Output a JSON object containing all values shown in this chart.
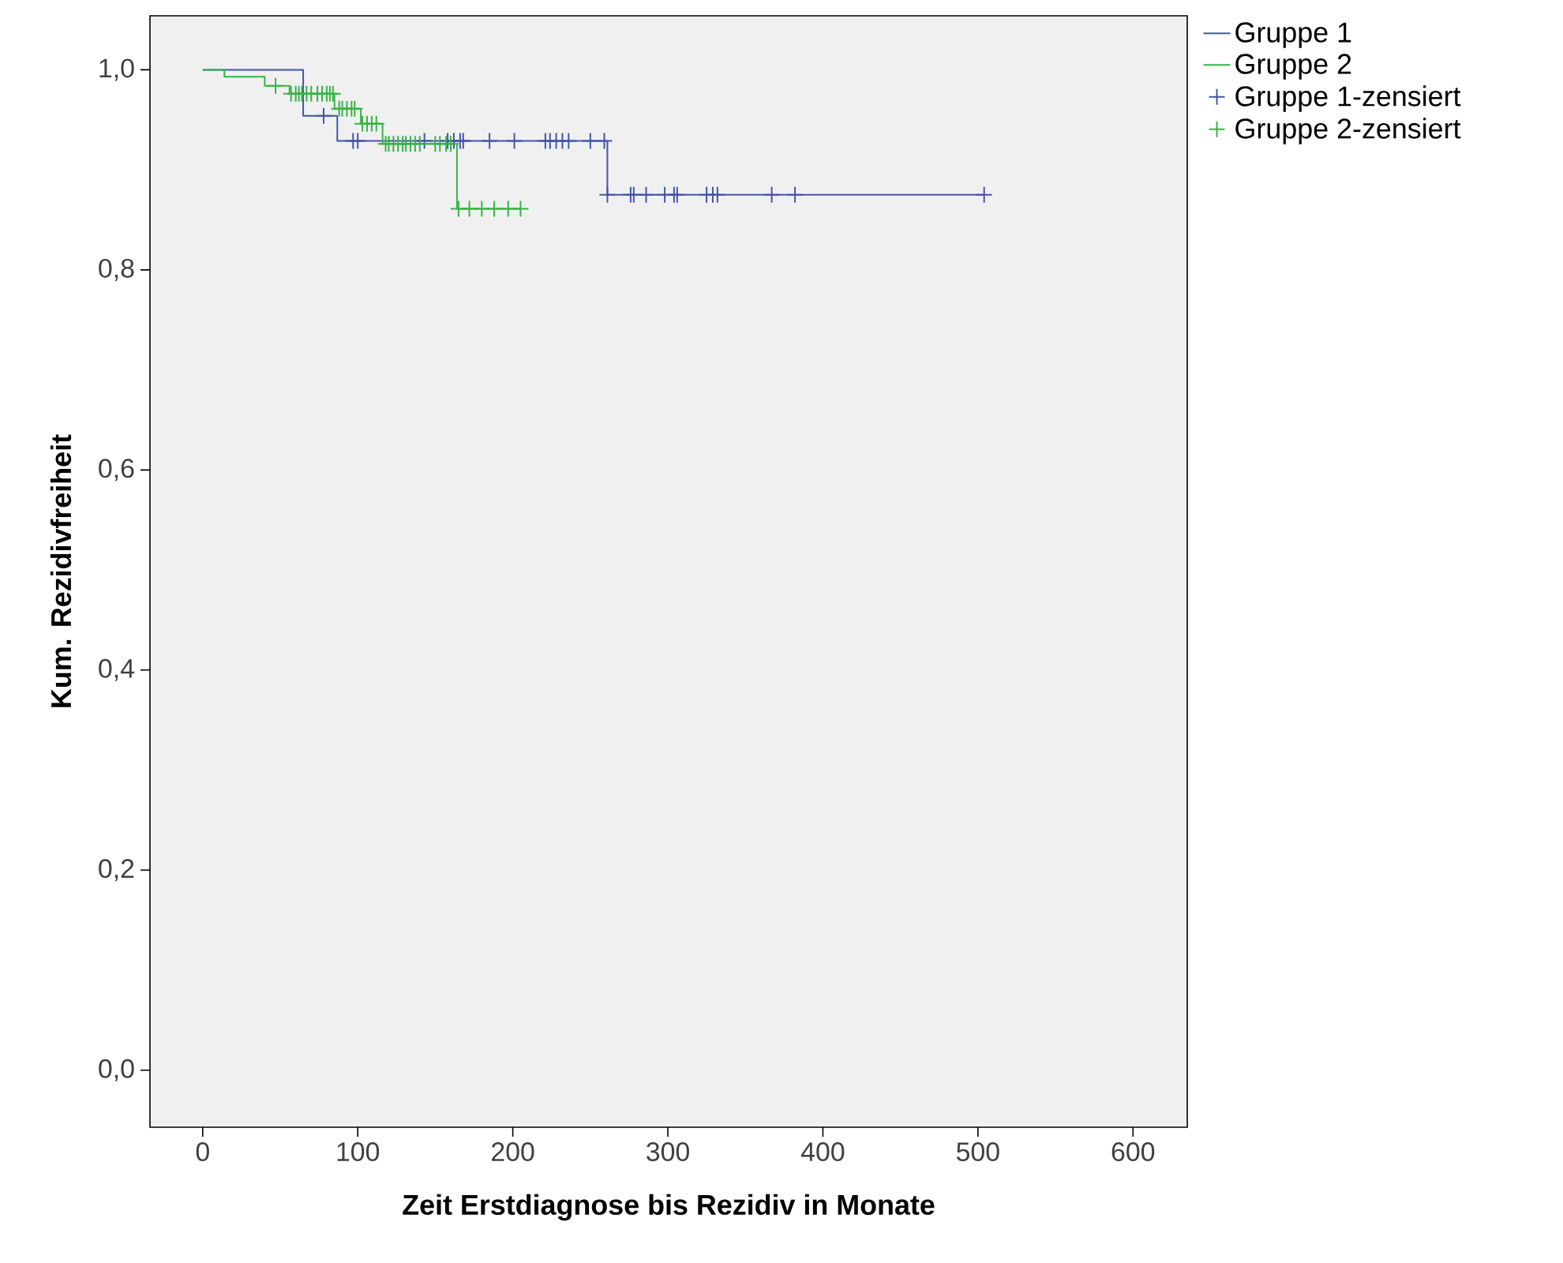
{
  "chart_data": {
    "type": "step",
    "xlabel": "Zeit Erstdiagnose bis Rezidiv in Monate",
    "ylabel": "Kum. Rezidivfreiheit",
    "xlim": [
      -34,
      635
    ],
    "ylim": [
      -0.057,
      1.054
    ],
    "xticks": [
      0,
      100,
      200,
      300,
      400,
      500,
      600
    ],
    "yticks": [
      {
        "value": 0,
        "label": "0,0"
      },
      {
        "value": 0.2,
        "label": "0,2"
      },
      {
        "value": 0.4,
        "label": "0,4"
      },
      {
        "value": 0.6,
        "label": "0,6"
      },
      {
        "value": 0.8,
        "label": "0,8"
      },
      {
        "value": 1.0,
        "label": "1,0"
      }
    ],
    "legend": "top right",
    "series": [
      {
        "name": "Gruppe 1",
        "color": "#4355a8",
        "marker": "none",
        "x": [
          0,
          64.8,
          86.8,
          261,
          504
        ],
        "values": [
          1.0,
          0.954,
          0.929,
          0.875,
          0.875
        ]
      },
      {
        "name": "Gruppe 2",
        "color": "#36b445",
        "marker": "none",
        "x": [
          0,
          14,
          40,
          56,
          85,
          102,
          116,
          164,
          205
        ],
        "values": [
          1.0,
          0.993,
          0.984,
          0.976,
          0.961,
          0.946,
          0.926,
          0.861,
          0.861
        ]
      },
      {
        "type": "scatter",
        "name": "Gruppe 1-zensiert",
        "color": "#4355a8",
        "marker": "cross",
        "x": [
          78,
          97,
          100,
          143,
          158,
          162,
          166,
          168,
          185,
          201,
          221,
          224,
          228,
          232,
          236,
          250,
          259,
          261,
          276,
          278,
          286,
          298,
          304,
          306,
          325,
          329,
          332,
          367,
          382,
          504
        ],
        "values": [
          0.954,
          0.929,
          0.929,
          0.929,
          0.929,
          0.929,
          0.929,
          0.929,
          0.929,
          0.929,
          0.929,
          0.929,
          0.929,
          0.929,
          0.929,
          0.929,
          0.929,
          0.875,
          0.875,
          0.875,
          0.875,
          0.875,
          0.875,
          0.875,
          0.875,
          0.875,
          0.875,
          0.875,
          0.875,
          0.875
        ]
      },
      {
        "type": "scatter",
        "name": "Gruppe 2-zensiert",
        "color": "#36b445",
        "marker": "cross",
        "x": [
          47,
          57,
          60,
          62,
          64,
          67,
          70,
          74,
          77,
          80,
          82,
          84,
          88,
          90,
          93,
          96,
          98,
          103,
          106,
          109,
          112,
          118,
          120,
          123,
          126,
          129,
          131,
          134,
          137,
          140,
          150,
          153,
          157,
          160,
          165,
          172,
          180,
          188,
          197,
          205
        ],
        "values": [
          0.984,
          0.976,
          0.976,
          0.976,
          0.976,
          0.976,
          0.976,
          0.976,
          0.976,
          0.976,
          0.976,
          0.976,
          0.961,
          0.961,
          0.961,
          0.961,
          0.961,
          0.946,
          0.946,
          0.946,
          0.946,
          0.926,
          0.926,
          0.926,
          0.926,
          0.926,
          0.926,
          0.926,
          0.926,
          0.926,
          0.926,
          0.926,
          0.926,
          0.926,
          0.861,
          0.861,
          0.861,
          0.861,
          0.861,
          0.861
        ]
      }
    ]
  }
}
